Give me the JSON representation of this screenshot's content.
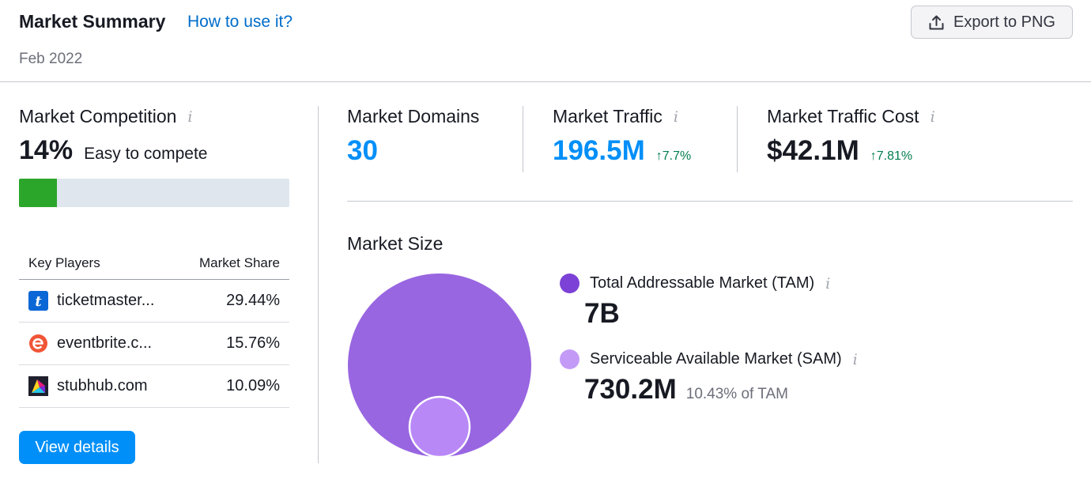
{
  "header": {
    "title": "Market Summary",
    "how_to_link": "How to use it?",
    "date": "Feb 2022",
    "export_label": "Export to PNG"
  },
  "competition": {
    "title": "Market Competition",
    "info": "i",
    "percent": "14%",
    "label": "Easy to compete",
    "level": 0.14,
    "bar_color": "#2ba62b",
    "bar_track_color": "#dfe6ee"
  },
  "key_players": {
    "col_player": "Key Players",
    "col_share": "Market Share",
    "rows": [
      {
        "domain": "ticketmaster...",
        "share": "29.44%",
        "icon": "ticketmaster-icon"
      },
      {
        "domain": "eventbrite.c...",
        "share": "15.76%",
        "icon": "eventbrite-icon"
      },
      {
        "domain": "stubhub.com",
        "share": "10.09%",
        "icon": "stubhub-icon"
      }
    ],
    "view_details": "View details"
  },
  "metrics": {
    "domains": {
      "label": "Market Domains",
      "value": "30"
    },
    "traffic": {
      "label": "Market Traffic",
      "info": "i",
      "value": "196.5M",
      "change": "↑7.7%"
    },
    "cost": {
      "label": "Market Traffic Cost",
      "info": "i",
      "value": "$42.1M",
      "change": "↑7.81%"
    }
  },
  "market_size": {
    "title": "Market Size",
    "tam": {
      "label": "Total Addressable Market (TAM)",
      "info": "i",
      "value": "7B",
      "color": "#9966e1"
    },
    "sam": {
      "label": "Serviceable Available Market (SAM)",
      "info": "i",
      "value": "730.2M",
      "sub": "10.43% of TAM",
      "color": "#b988f7"
    }
  },
  "colors": {
    "link": "#006dca",
    "value_blue": "#008ff8",
    "positive": "#007d4e",
    "tam_dot": "#7c41d6",
    "sam_dot": "#c39bf7"
  }
}
